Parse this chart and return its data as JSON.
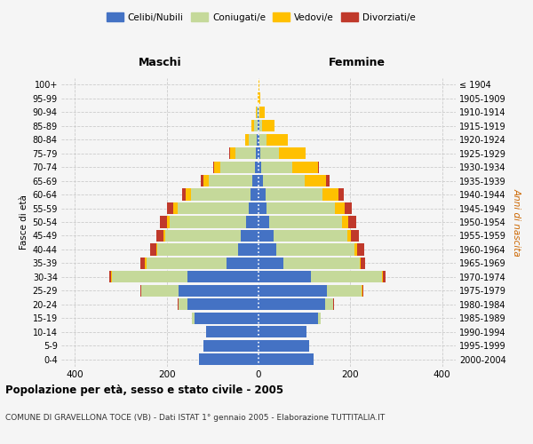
{
  "age_groups": [
    "0-4",
    "5-9",
    "10-14",
    "15-19",
    "20-24",
    "25-29",
    "30-34",
    "35-39",
    "40-44",
    "45-49",
    "50-54",
    "55-59",
    "60-64",
    "65-69",
    "70-74",
    "75-79",
    "80-84",
    "85-89",
    "90-94",
    "95-99",
    "100+"
  ],
  "birth_years": [
    "2000-2004",
    "1995-1999",
    "1990-1994",
    "1985-1989",
    "1980-1984",
    "1975-1979",
    "1970-1974",
    "1965-1969",
    "1960-1964",
    "1955-1959",
    "1950-1954",
    "1945-1949",
    "1940-1944",
    "1935-1939",
    "1930-1934",
    "1925-1929",
    "1920-1924",
    "1915-1919",
    "1910-1914",
    "1905-1909",
    "≤ 1904"
  ],
  "male_celibi": [
    130,
    120,
    115,
    140,
    155,
    175,
    155,
    70,
    45,
    38,
    28,
    22,
    18,
    14,
    8,
    5,
    3,
    2,
    1,
    0,
    0
  ],
  "male_coniugati": [
    0,
    0,
    0,
    5,
    20,
    80,
    165,
    175,
    175,
    165,
    165,
    155,
    130,
    95,
    75,
    45,
    18,
    8,
    3,
    0,
    0
  ],
  "male_vedovi": [
    0,
    0,
    0,
    0,
    0,
    1,
    1,
    2,
    3,
    4,
    6,
    8,
    10,
    12,
    14,
    12,
    8,
    5,
    2,
    1,
    0
  ],
  "male_divorziati": [
    0,
    0,
    0,
    0,
    1,
    2,
    5,
    10,
    14,
    15,
    16,
    14,
    8,
    5,
    2,
    1,
    0,
    0,
    0,
    0,
    0
  ],
  "female_celibi": [
    120,
    110,
    105,
    130,
    145,
    150,
    115,
    55,
    38,
    32,
    24,
    18,
    15,
    10,
    6,
    4,
    2,
    1,
    0,
    0,
    0
  ],
  "female_coniugati": [
    0,
    0,
    0,
    5,
    18,
    75,
    155,
    165,
    172,
    162,
    158,
    148,
    125,
    90,
    68,
    40,
    16,
    6,
    2,
    0,
    0
  ],
  "female_vedovi": [
    0,
    0,
    0,
    0,
    0,
    1,
    2,
    3,
    5,
    8,
    14,
    22,
    35,
    48,
    55,
    58,
    45,
    28,
    12,
    4,
    1
  ],
  "female_divorziati": [
    0,
    0,
    0,
    0,
    1,
    2,
    5,
    10,
    15,
    16,
    18,
    16,
    10,
    6,
    3,
    1,
    0,
    0,
    0,
    0,
    0
  ],
  "color_celibi": "#4472c4",
  "color_coniugati": "#c5d99a",
  "color_vedovi": "#ffc000",
  "color_divorziati": "#c0392b",
  "title": "Popolazione per età, sesso e stato civile - 2005",
  "subtitle": "COMUNE DI GRAVELLONA TOCE (VB) - Dati ISTAT 1° gennaio 2005 - Elaborazione TUTTITALIA.IT",
  "xlabel_maschi": "Maschi",
  "xlabel_femmine": "Femmine",
  "ylabel_left": "Fasce di età",
  "ylabel_right": "Anni di nascita",
  "xlim": 430,
  "background_color": "#f5f5f5",
  "grid_color": "#cccccc"
}
